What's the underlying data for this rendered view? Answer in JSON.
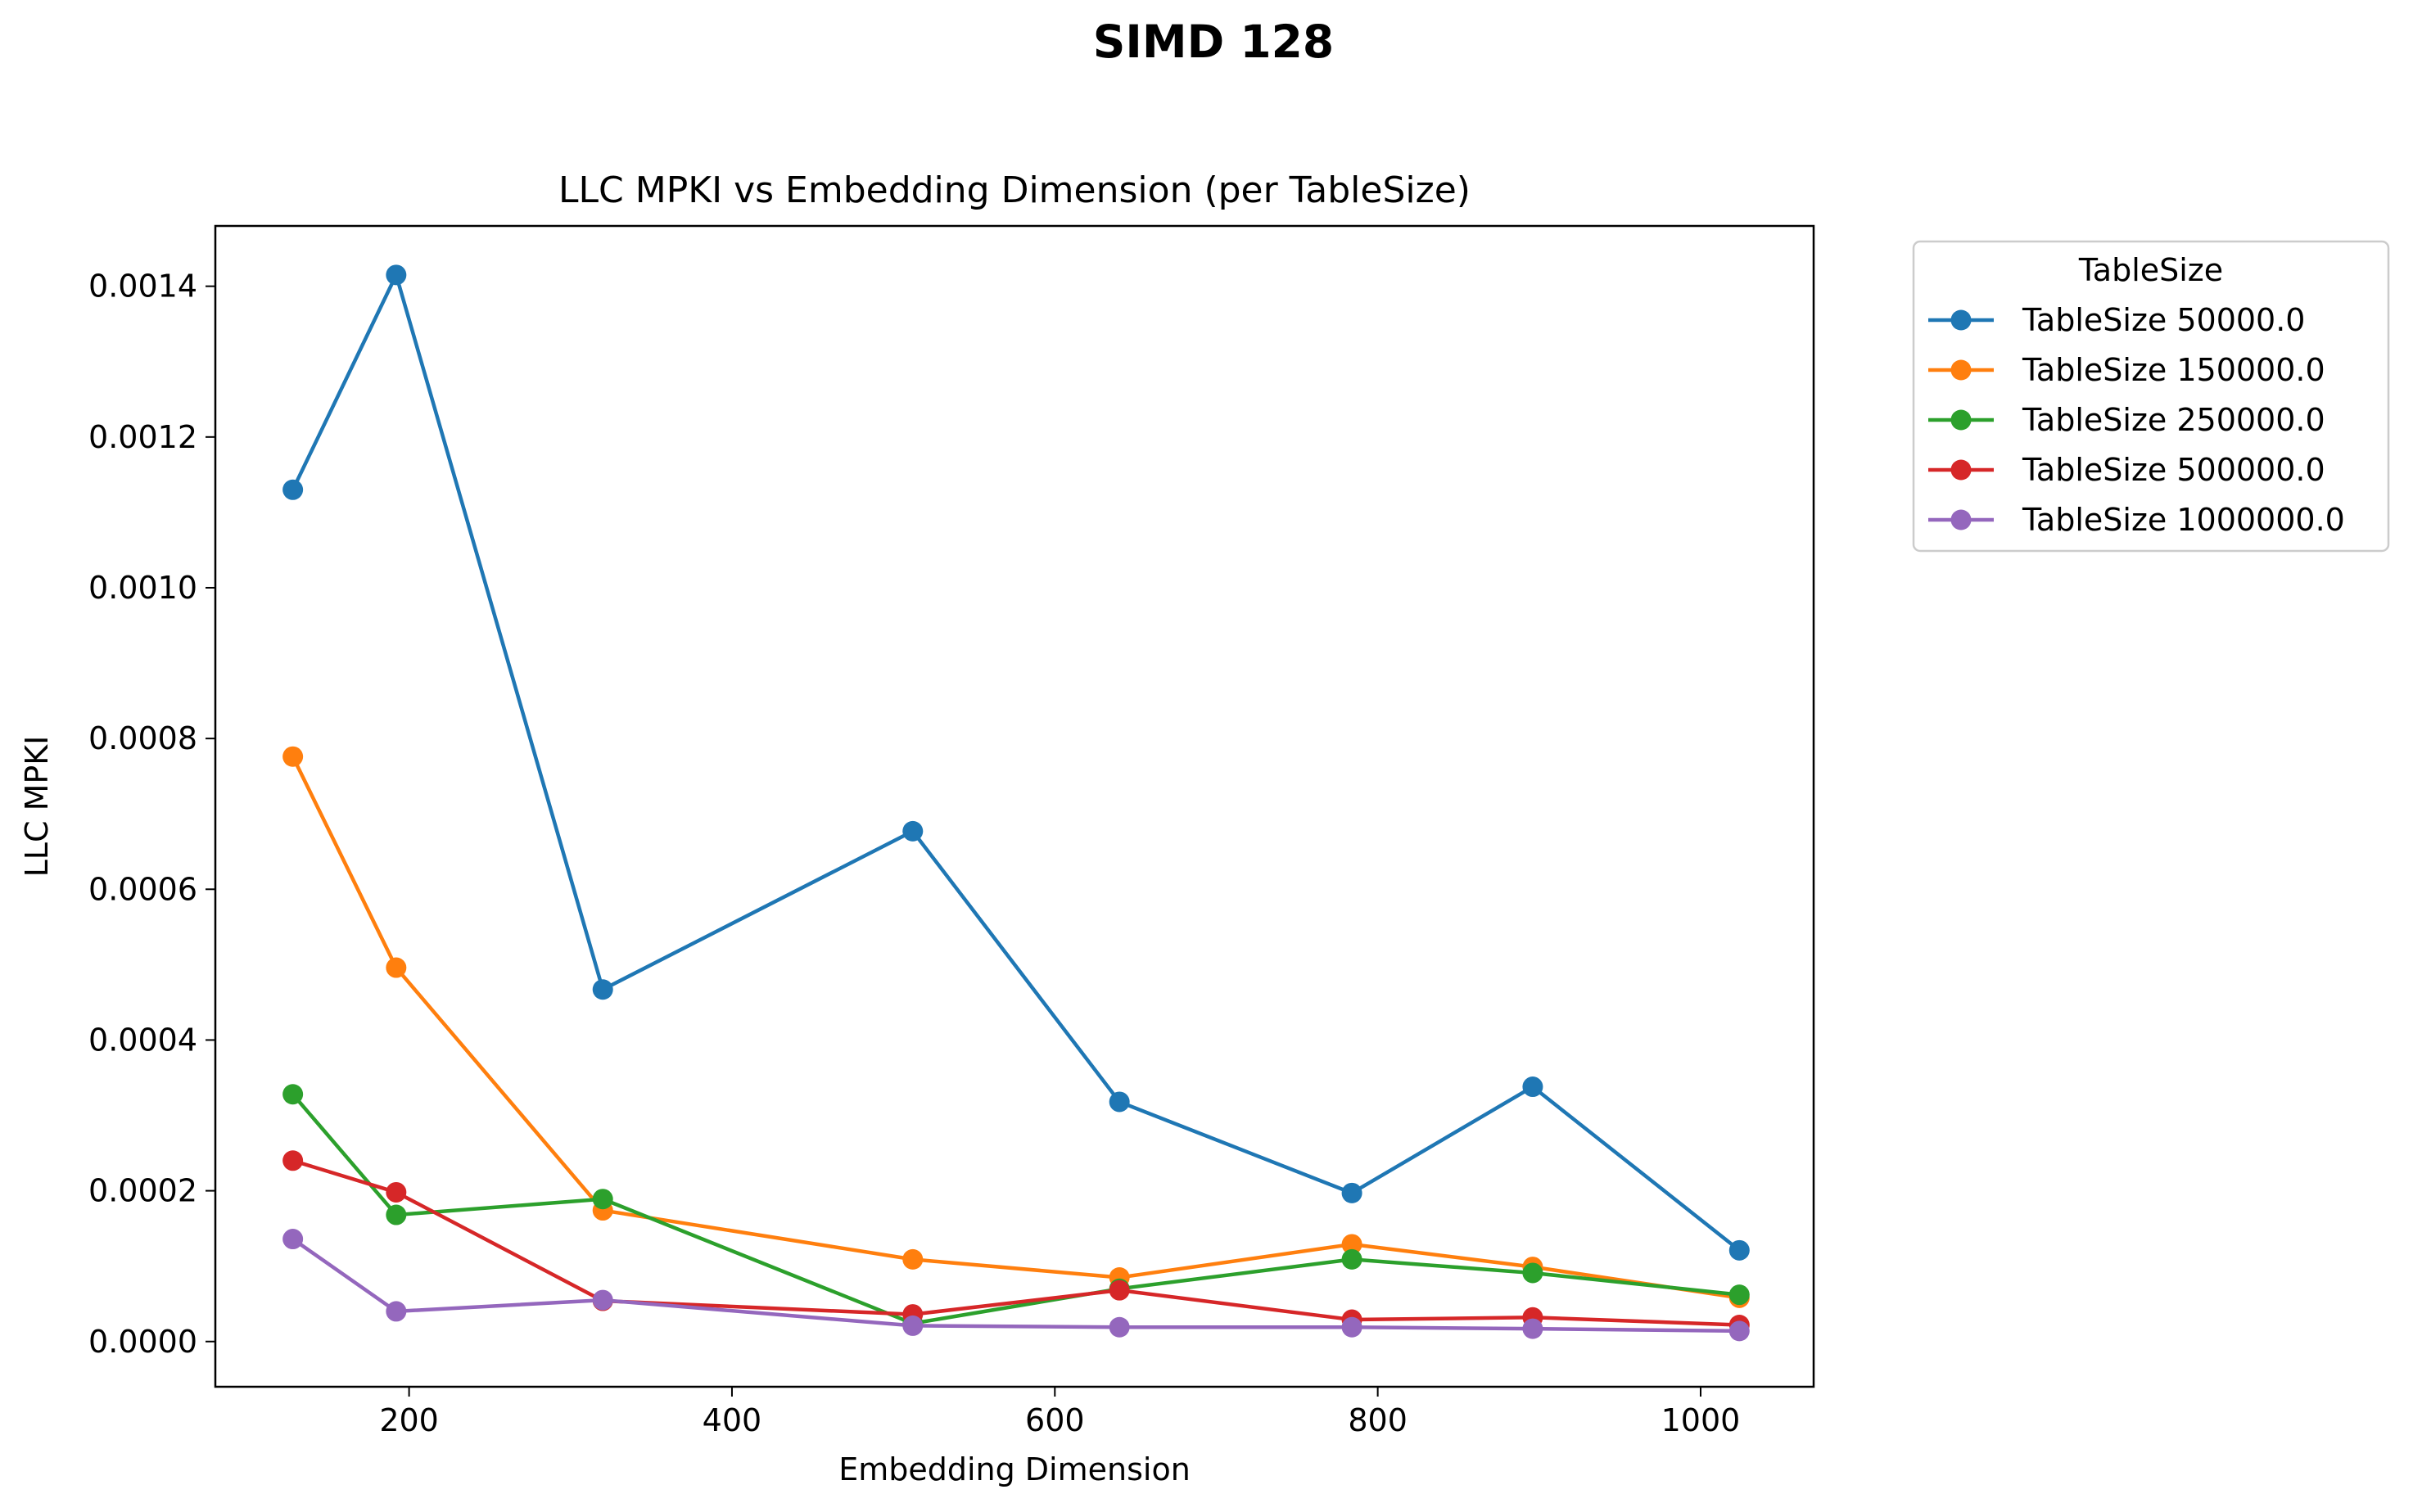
{
  "figure": {
    "suptitle": "SIMD 128"
  },
  "chart_data": {
    "type": "line",
    "title": "LLC MPKI vs Embedding Dimension (per TableSize)",
    "xlabel": "Embedding Dimension",
    "ylabel": "LLC MPKI",
    "xlim": [
      80,
      1070
    ],
    "ylim": [
      -6e-05,
      0.00148
    ],
    "xticks": [
      200,
      400,
      600,
      800,
      1000
    ],
    "xtick_labels": [
      "200",
      "400",
      "600",
      "800",
      "1000"
    ],
    "yticks": [
      0,
      0.0002,
      0.0004,
      0.0006,
      0.0008,
      0.001,
      0.0012,
      0.0014
    ],
    "ytick_labels": [
      "0.0000",
      "0.0002",
      "0.0004",
      "0.0006",
      "0.0008",
      "0.0010",
      "0.0012",
      "0.0014"
    ],
    "grid": false,
    "legend": {
      "title": "TableSize",
      "placement": "outside upper right"
    },
    "x": [
      128,
      192,
      320,
      512,
      640,
      784,
      896,
      1024
    ],
    "series": [
      {
        "name": "TableSize 50000.0",
        "color": "#1f77b4",
        "values": [
          0.00113,
          0.001415,
          0.000467,
          0.000677,
          0.000318,
          0.000197,
          0.000338,
          0.000121
        ]
      },
      {
        "name": "TableSize 150000.0",
        "color": "#ff7f0e",
        "values": [
          0.000776,
          0.000496,
          0.000174,
          0.000109,
          8.5e-05,
          0.000129,
          9.9e-05,
          5.8e-05
        ]
      },
      {
        "name": "TableSize 250000.0",
        "color": "#2ca02c",
        "values": [
          0.000328,
          0.000168,
          0.000189,
          2.4e-05,
          7e-05,
          0.000109,
          9.1e-05,
          6.2e-05
        ]
      },
      {
        "name": "TableSize 500000.0",
        "color": "#d62728",
        "values": [
          0.00024,
          0.000198,
          5.4e-05,
          3.6e-05,
          6.8e-05,
          2.9e-05,
          3.2e-05,
          2.2e-05
        ]
      },
      {
        "name": "TableSize 1000000.0",
        "color": "#9467bd",
        "values": [
          0.000136,
          4e-05,
          5.5e-05,
          2.1e-05,
          1.9e-05,
          1.9e-05,
          1.7e-05,
          1.4e-05
        ]
      }
    ]
  }
}
